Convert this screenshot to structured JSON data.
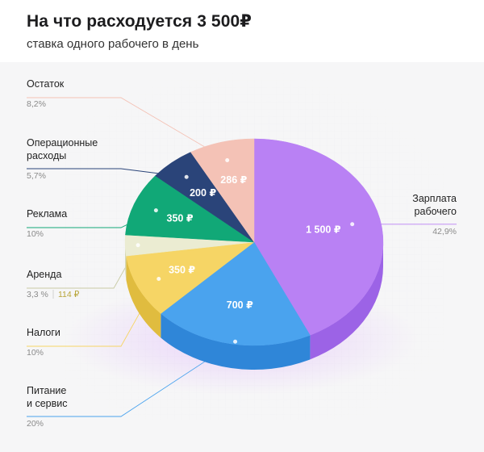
{
  "header": {
    "title": "На что расходуется 3 500₽",
    "subtitle": "ставка одного рабочего в день"
  },
  "chart_data": {
    "type": "pie",
    "title": "На что расходуется 3 500₽",
    "subtitle": "ставка одного рабочего в день",
    "total": 3500,
    "currency": "₽",
    "slices": [
      {
        "key": "salary",
        "name_lines": [
          "Зарплата",
          "рабочего"
        ],
        "value": 1500,
        "value_label": "1 500 ₽",
        "percent_label": "42,9%",
        "color": "#b981f4",
        "side_color": "#9c63e6"
      },
      {
        "key": "food",
        "name_lines": [
          "Питание",
          "и сервис"
        ],
        "value": 700,
        "value_label": "700 ₽",
        "percent_label": "20%",
        "color": "#4aa3ee",
        "side_color": "#2f86d8"
      },
      {
        "key": "taxes",
        "name_lines": [
          "Налоги"
        ],
        "value": 350,
        "value_label": "350 ₽",
        "percent_label": "10%",
        "color": "#f6d565",
        "side_color": "#e0bc3f"
      },
      {
        "key": "rent",
        "name_lines": [
          "Аренда"
        ],
        "value": 114,
        "value_label": "",
        "percent_label": "3,3 %",
        "extra_label": "114 ₽",
        "color": "#ebecd2",
        "side_color": "#d6d8b6"
      },
      {
        "key": "ads",
        "name_lines": [
          "Реклама"
        ],
        "value": 350,
        "value_label": "350 ₽",
        "percent_label": "10%",
        "color": "#11a877",
        "side_color": "#0c8a61"
      },
      {
        "key": "ops",
        "name_lines": [
          "Операционные",
          "расходы"
        ],
        "value": 200,
        "value_label": "200 ₽",
        "percent_label": "5,7%",
        "color": "#2a4479",
        "side_color": "#1d3260"
      },
      {
        "key": "rest",
        "name_lines": [
          "Остаток"
        ],
        "value": 286,
        "value_label": "286 ₽",
        "percent_label": "8,2%",
        "color": "#f4c2b6",
        "side_color": "#e2a899"
      }
    ]
  }
}
